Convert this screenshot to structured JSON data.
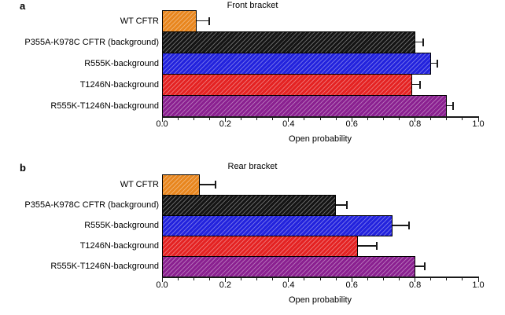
{
  "chart_data": [
    {
      "type": "bar",
      "orientation": "horizontal",
      "panel_label": "a",
      "title": "Front bracket",
      "xlabel": "Open probability",
      "categories": [
        "WT CFTR",
        "P355A-K978C CFTR (background)",
        "R555K-background",
        "T1246N-background",
        "R555K-T1246N-background"
      ],
      "values": [
        0.11,
        0.8,
        0.85,
        0.79,
        0.9
      ],
      "errors": [
        0.04,
        0.025,
        0.02,
        0.025,
        0.02
      ],
      "bar_colors": [
        "#E8861E",
        "#141414",
        "#2222DD",
        "#E42222",
        "#8A2090"
      ],
      "hatch": "diagonal",
      "grid": false,
      "xlim": [
        0.0,
        1.0
      ],
      "xticks": [
        0.0,
        0.2,
        0.4,
        0.6,
        0.8,
        1.0
      ],
      "xtick_labels": [
        "0.0",
        "0.2",
        "0.4",
        "0.6",
        "0.8",
        "1.0"
      ],
      "minor_tick_step": 0.05
    },
    {
      "type": "bar",
      "orientation": "horizontal",
      "panel_label": "b",
      "title": "Rear bracket",
      "xlabel": "Open probability",
      "categories": [
        "WT CFTR",
        "P355A-K978C CFTR (background)",
        "R555K-background",
        "T1246N-background",
        "R555K-T1246N-background"
      ],
      "values": [
        0.12,
        0.55,
        0.73,
        0.62,
        0.8
      ],
      "errors": [
        0.05,
        0.035,
        0.05,
        0.06,
        0.03
      ],
      "bar_colors": [
        "#E8861E",
        "#141414",
        "#2222DD",
        "#E42222",
        "#8A2090"
      ],
      "hatch": "diagonal",
      "grid": false,
      "xlim": [
        0.0,
        1.0
      ],
      "xticks": [
        0.0,
        0.2,
        0.4,
        0.6,
        0.8,
        1.0
      ],
      "xtick_labels": [
        "0.0",
        "0.2",
        "0.4",
        "0.6",
        "0.8",
        "1.0"
      ],
      "minor_tick_step": 0.05
    }
  ]
}
